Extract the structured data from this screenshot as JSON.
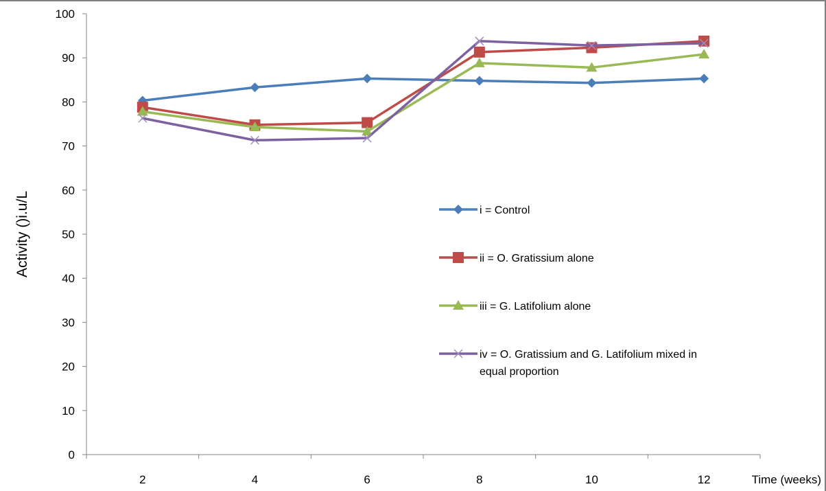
{
  "chart_data": {
    "type": "line",
    "xlabel": "Time (weeks)",
    "ylabel": "Activity ()i.u/L",
    "ylim": [
      0,
      100
    ],
    "yticks": [
      0,
      10,
      20,
      30,
      40,
      50,
      60,
      70,
      80,
      90,
      100
    ],
    "categories": [
      "2",
      "4",
      "6",
      "8",
      "10",
      "12"
    ],
    "grid": false,
    "legend_position": "center-right",
    "series": [
      {
        "name": "i = Control",
        "color": "#4a7ebb",
        "marker": "diamond",
        "values": [
          80.3,
          83.3,
          85.3,
          84.8,
          84.3,
          85.3
        ]
      },
      {
        "name": "ii = O. Gratissium alone",
        "color": "#be4b48",
        "marker": "square",
        "values": [
          78.8,
          74.8,
          75.3,
          91.3,
          92.3,
          93.8
        ]
      },
      {
        "name": "iii = G. Latifolium alone",
        "color": "#98b954",
        "marker": "triangle",
        "values": [
          77.8,
          74.3,
          73.3,
          88.8,
          87.8,
          90.8
        ]
      },
      {
        "name": "iv = O. Gratissium and G. Latifolium mixed in equal proportion",
        "color": "#7d60a0",
        "marker": "x",
        "legend_lines": [
          "iv = O. Gratissium and G. Latifolium mixed in",
          "equal proportion"
        ],
        "values": [
          76.3,
          71.3,
          71.8,
          93.8,
          92.8,
          93.3
        ]
      }
    ]
  }
}
